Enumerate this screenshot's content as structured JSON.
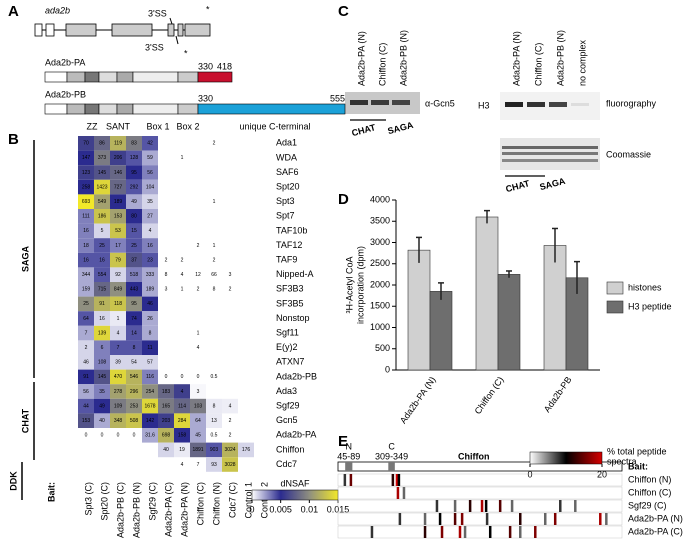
{
  "panel_a": {
    "letter": "A",
    "gene": "ada2b",
    "splice_top": "3'SS",
    "splice_bottom": "3'SS",
    "stop_top": "*",
    "stop_bottom": "*",
    "isoforms": [
      {
        "name": "Ada2b-PA",
        "start": 330,
        "end": 418,
        "color": "#c8102e"
      },
      {
        "name": "Ada2b-PB",
        "start": 330,
        "end": 555,
        "color": "#1ba1d8"
      }
    ],
    "domains": [
      "ZZ",
      "SANT",
      "Box 1",
      "Box 2",
      "unique C-terminal"
    ]
  },
  "panel_b": {
    "letter": "B",
    "groups": [
      "SAGA",
      "CHAT",
      "DDK"
    ],
    "bait_title": "Bait:",
    "baits": [
      {
        "name": "Spt3 (C)",
        "color": "#000000"
      },
      {
        "name": "Spt20 (C)",
        "color": "#000000"
      },
      {
        "name": "Ada2b-PB (C)",
        "color": "#000000"
      },
      {
        "name": "Ada2b-PB (N)",
        "color": "#c00000"
      },
      {
        "name": "Sgf29 (C)",
        "color": "#000000"
      },
      {
        "name": "Ada2b-PA (C)",
        "color": "#c00000"
      },
      {
        "name": "Ada2b-PA (N)",
        "color": "#c00000"
      },
      {
        "name": "Chiffon (C)",
        "color": "#c00000"
      },
      {
        "name": "Chiffon (N)",
        "color": "#c00000"
      },
      {
        "name": "Cdc7 (C)",
        "color": "#c00000"
      },
      {
        "name": "Control 1",
        "color": "#000000"
      },
      {
        "name": "Control 2",
        "color": "#000000"
      }
    ],
    "proteins": [
      "Ada1",
      "WDA",
      "SAF6",
      "Spt20",
      "Spt3",
      "Spt7",
      "TAF10b",
      "TAF12",
      "TAF9",
      "Nipped-A",
      "SF3B3",
      "SF3B5",
      "Nonstop",
      "Sgf11",
      "E(y)2",
      "ATXN7",
      "Ada2b-PB",
      "Ada3",
      "Sgf29",
      "Gcn5",
      "Ada2b-PA",
      "Chiffon",
      "Cdc7"
    ],
    "labels": [
      [
        "70",
        "86",
        "119",
        "83",
        "42",
        null,
        null,
        null,
        "2",
        null,
        null,
        null
      ],
      [
        "147",
        "373",
        "206",
        "128",
        "59",
        null,
        "1",
        null,
        null,
        null,
        null,
        null
      ],
      [
        "123",
        "145",
        "146",
        "95",
        "56",
        null,
        null,
        null,
        null,
        null,
        null,
        null
      ],
      [
        "258",
        "1423",
        "727",
        "292",
        "104",
        null,
        null,
        null,
        null,
        null,
        null,
        null
      ],
      [
        "693",
        "549",
        "189",
        "49",
        "35",
        null,
        null,
        null,
        "1",
        null,
        null,
        null
      ],
      [
        "111",
        "186",
        "153",
        "80",
        "27",
        null,
        null,
        null,
        null,
        null,
        null,
        null
      ],
      [
        "16",
        "5",
        "53",
        "15",
        "4",
        null,
        null,
        null,
        null,
        null,
        null,
        null
      ],
      [
        "18",
        "25",
        "17",
        "25",
        "16",
        null,
        null,
        "2",
        "1",
        null,
        null,
        null
      ],
      [
        "16",
        "16",
        "79",
        "37",
        "23",
        "2",
        "2",
        null,
        "2",
        null,
        null,
        null
      ],
      [
        "344",
        "554",
        "92",
        "518",
        "333",
        "8",
        "4",
        "12",
        "66",
        "3",
        null,
        null
      ],
      [
        "159",
        "715",
        "849",
        "443",
        "189",
        "3",
        "1",
        "2",
        "8",
        "2",
        null,
        null
      ],
      [
        "25",
        "91",
        "118",
        "95",
        "46",
        null,
        null,
        null,
        null,
        null,
        null,
        null
      ],
      [
        "64",
        "16",
        "1",
        "74",
        "26",
        null,
        null,
        null,
        null,
        null,
        null,
        null
      ],
      [
        "7",
        "139",
        "4",
        "14",
        "8",
        null,
        null,
        "1",
        null,
        null,
        null,
        null
      ],
      [
        "2",
        "6",
        "7",
        "8",
        "11",
        null,
        null,
        "4",
        null,
        null,
        null,
        null
      ],
      [
        "46",
        "108",
        "39",
        "54",
        "57",
        null,
        null,
        null,
        null,
        null,
        null,
        null
      ],
      [
        "91",
        "145",
        "470",
        "546",
        "116",
        "0",
        "0",
        "0",
        "0.5",
        null,
        null,
        null
      ],
      [
        "56",
        "35",
        "278",
        "296",
        "254",
        "183",
        "4",
        "3",
        null,
        null,
        null,
        null
      ],
      [
        "44",
        "49",
        "109",
        "253",
        "1678",
        "165",
        "114",
        "103",
        "8",
        "4",
        null,
        null
      ],
      [
        "153",
        "40",
        "348",
        "508",
        "142",
        "203",
        "284",
        "64",
        "13",
        "2",
        null,
        null
      ],
      [
        "0",
        "0",
        "0",
        "0",
        "31.6",
        "698",
        "158",
        "45",
        "0.5",
        "2",
        null,
        null
      ],
      [
        null,
        null,
        null,
        null,
        null,
        "40",
        "19",
        "1891",
        "903",
        "3024",
        "176",
        null
      ],
      [
        null,
        null,
        null,
        null,
        null,
        null,
        "4",
        "7",
        "93",
        "3028",
        null,
        null
      ]
    ],
    "dnsaf": [
      [
        0.006,
        0.008,
        0.012,
        0.009,
        0.004,
        null,
        null,
        null,
        null,
        null,
        null,
        null
      ],
      [
        0.005,
        0.009,
        0.006,
        0.004,
        0.002,
        null,
        null,
        null,
        null,
        null,
        null,
        null
      ],
      [
        0.006,
        0.007,
        0.008,
        0.005,
        0.003,
        null,
        null,
        null,
        null,
        null,
        null,
        null
      ],
      [
        0.005,
        0.014,
        0.008,
        0.004,
        0.002,
        null,
        null,
        null,
        null,
        null,
        null,
        null
      ],
      [
        0.015,
        0.011,
        0.005,
        0.002,
        0.001,
        null,
        null,
        null,
        null,
        null,
        null,
        null
      ],
      [
        0.003,
        0.013,
        0.011,
        0.005,
        0.002,
        null,
        null,
        null,
        null,
        null,
        null,
        null
      ],
      [
        0.003,
        0.001,
        0.013,
        0.004,
        0.001,
        null,
        null,
        null,
        null,
        null,
        null,
        null
      ],
      [
        0.003,
        0.004,
        0.003,
        0.004,
        0.003,
        null,
        null,
        null,
        null,
        null,
        null,
        null
      ],
      [
        0.004,
        0.004,
        0.013,
        0.007,
        0.004,
        null,
        null,
        null,
        null,
        null,
        null,
        null
      ],
      [
        0.002,
        0.004,
        0.001,
        0.003,
        0.002,
        null,
        null,
        null,
        null,
        null,
        null,
        null
      ],
      [
        0.002,
        0.008,
        0.01,
        0.005,
        0.002,
        null,
        null,
        null,
        null,
        null,
        null,
        null
      ],
      [
        0.01,
        0.012,
        0.013,
        0.01,
        0.005,
        null,
        null,
        null,
        null,
        null,
        null,
        null
      ],
      [
        0.004,
        0.001,
        0.0005,
        0.005,
        0.002,
        null,
        null,
        null,
        null,
        null,
        null,
        null
      ],
      [
        0.002,
        0.014,
        0.001,
        0.004,
        0.002,
        null,
        null,
        null,
        null,
        null,
        null,
        null
      ],
      [
        0.001,
        0.003,
        0.004,
        0.004,
        0.005,
        null,
        null,
        null,
        null,
        null,
        null,
        null
      ],
      [
        0.001,
        0.003,
        0.001,
        0.001,
        0.001,
        null,
        null,
        null,
        null,
        null,
        null,
        null
      ],
      [
        0.005,
        0.007,
        0.014,
        0.012,
        0.003,
        null,
        null,
        null,
        null,
        null,
        null,
        null
      ],
      [
        0.002,
        0.003,
        0.011,
        0.012,
        0.01,
        0.008,
        0.006,
        0.0002,
        null,
        null,
        null,
        null
      ],
      [
        0.004,
        0.005,
        0.009,
        0.01,
        0.014,
        0.009,
        0.008,
        0.009,
        0.0005,
        0.0004,
        null,
        null
      ],
      [
        0.007,
        0.002,
        0.012,
        0.013,
        0.005,
        0.006,
        0.014,
        0.002,
        0.0005,
        null,
        null,
        null
      ],
      [
        null,
        null,
        null,
        null,
        0.002,
        0.012,
        0.005,
        0.002,
        null,
        null,
        null,
        null
      ],
      [
        null,
        null,
        null,
        null,
        null,
        0.001,
        0.0005,
        0.008,
        0.004,
        0.012,
        0.001,
        null
      ],
      [
        null,
        null,
        null,
        null,
        null,
        null,
        null,
        null,
        0.001,
        0.013,
        null,
        null
      ]
    ],
    "colorbar": {
      "title": "dNSAF",
      "ticks": [
        0,
        0.005,
        0.01,
        0.015
      ],
      "colors": [
        "#ffffff",
        "#2b2b8f",
        "#8f8f80",
        "#f2e829"
      ]
    }
  },
  "panel_c": {
    "letter": "C",
    "gcn5_lanes": [
      "Ada2b-PA (N)",
      "Chiffon (C)",
      "Ada2b-PB (N)"
    ],
    "gcn5_label": "α-Gcn5",
    "gcn5_groups": [
      "CHAT",
      "SAGA"
    ],
    "hat_lanes": [
      "Ada2b-PA (N)",
      "Chiffon (C)",
      "Ada2b-PB (N)",
      "no complex"
    ],
    "h3_label": "H3",
    "fluorography": "fluorography",
    "coomassie": "Coomassie",
    "hat_groups": [
      "CHAT",
      "SAGA"
    ]
  },
  "chart_data": {
    "type": "bar",
    "panel_label": "D",
    "ylabel": [
      "³H-Acetyl CoA",
      "incorporation (dpm)"
    ],
    "categories": [
      "Ada2b-PA (N)",
      "Chiffon (C)",
      "Ada2b-PB"
    ],
    "series": [
      {
        "name": "histones",
        "color": "#d0d0d0",
        "values": [
          2820,
          3600,
          2930
        ],
        "errors": [
          300,
          150,
          400
        ]
      },
      {
        "name": "H3 peptide",
        "color": "#6e6e6e",
        "values": [
          1850,
          2250,
          2170
        ],
        "errors": [
          200,
          80,
          380
        ]
      }
    ],
    "ylim": [
      0,
      4000
    ],
    "yticks": [
      0,
      500,
      1000,
      1500,
      2000,
      2500,
      3000,
      3500,
      4000
    ],
    "legend": "right"
  },
  "panel_e": {
    "letter": "E",
    "protein": "Chiffon",
    "xlim": [
      1,
      1740
    ],
    "domains": [
      {
        "name": "N",
        "range": "45-89",
        "start": 45,
        "end": 89
      },
      {
        "name": "C",
        "range": "309-349",
        "start": 309,
        "end": 349
      }
    ],
    "colorbar": {
      "title": [
        "% total peptide",
        "spectra"
      ],
      "ticks": [
        0,
        20
      ],
      "colors": [
        "#ffffff",
        "#000000",
        "#d40000"
      ]
    },
    "bait_title": "Bait:",
    "baits": [
      {
        "name": "Chiffon (N)",
        "positions": [
          43,
          80,
          337,
          362,
          374
        ],
        "pct": [
          8,
          15,
          12,
          20,
          10
        ]
      },
      {
        "name": "Chiffon (C)",
        "positions": [
          368,
          405
        ],
        "pct": [
          18,
          6
        ]
      },
      {
        "name": "Sgf29 (C)",
        "positions": [
          607,
          718,
          810,
          883,
          908,
          994,
          1067,
          1362,
          1454
        ],
        "pct": [
          8,
          6,
          12,
          18,
          10,
          14,
          6,
          8,
          6
        ]
      },
      {
        "name": "Ada2b-PA (N)",
        "positions": [
          380,
          534,
          626,
          718,
          761,
          914,
          1117,
          1270,
          1331,
          1607,
          1644
        ],
        "pct": [
          8,
          6,
          10,
          14,
          16,
          8,
          12,
          6,
          16,
          18,
          6
        ]
      },
      {
        "name": "Ada2b-PA (C)",
        "positions": [
          209,
          534,
          638,
          748,
          779,
          933,
          1055,
          1117,
          1209
        ],
        "pct": [
          8,
          12,
          16,
          18,
          6,
          10,
          14,
          6,
          16
        ]
      }
    ]
  }
}
